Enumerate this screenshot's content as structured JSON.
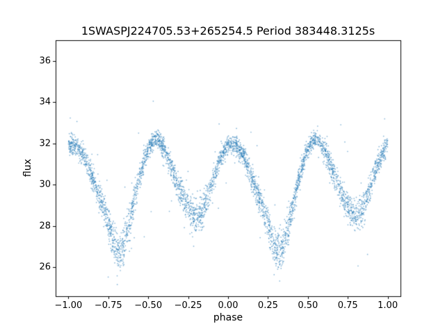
{
  "chart_data": {
    "type": "scatter",
    "title": "1SWASPJ224705.53+265254.5 Period 383448.3125s",
    "xlabel": "phase",
    "ylabel": "flux",
    "xlim": [
      -1.08,
      1.08
    ],
    "ylim": [
      24.6,
      37.0
    ],
    "x_ticks": [
      -1.0,
      -0.75,
      -0.5,
      -0.25,
      0.0,
      0.25,
      0.5,
      0.75,
      1.0
    ],
    "x_tick_labels": [
      "−1.00",
      "−0.75",
      "−0.50",
      "−0.25",
      "0.00",
      "0.25",
      "0.50",
      "0.75",
      "1.00"
    ],
    "y_ticks": [
      26,
      28,
      30,
      32,
      34,
      36
    ],
    "y_tick_labels": [
      "26",
      "28",
      "30",
      "32",
      "34",
      "36"
    ],
    "grid": false,
    "legend": null,
    "marker_color": "#1f77b4",
    "marker_alpha": 0.55,
    "marker_radius": 0.85,
    "n_points": 4000,
    "seed": 7,
    "noise_base": 0.22,
    "noise_slope": 0.05,
    "outlier_fraction": 0.02,
    "outlier_sigma": 1.5,
    "model_curve": {
      "phase_period": 1.0,
      "description": "folded light curve, two cycles plotted over phase -1..1; maxima ~32 at phase 0, deep minima ~26.7 at phase 0.31 and -0.69, secondary maxima ~32.3 at phase 0.56 and -0.44, secondary minima ~28.4 at phase 0.80 and -0.20",
      "anchors": [
        [
          0.0,
          32.0
        ],
        [
          0.05,
          31.9
        ],
        [
          0.1,
          31.4
        ],
        [
          0.15,
          30.3
        ],
        [
          0.2,
          29.3
        ],
        [
          0.25,
          28.2
        ],
        [
          0.29,
          27.0
        ],
        [
          0.32,
          26.7
        ],
        [
          0.35,
          27.2
        ],
        [
          0.4,
          28.8
        ],
        [
          0.44,
          30.2
        ],
        [
          0.48,
          31.3
        ],
        [
          0.52,
          32.0
        ],
        [
          0.56,
          32.3
        ],
        [
          0.6,
          31.7
        ],
        [
          0.64,
          30.9
        ],
        [
          0.68,
          30.1
        ],
        [
          0.72,
          29.4
        ],
        [
          0.76,
          28.8
        ],
        [
          0.8,
          28.4
        ],
        [
          0.84,
          28.7
        ],
        [
          0.88,
          29.6
        ],
        [
          0.92,
          30.6
        ],
        [
          0.96,
          31.4
        ],
        [
          1.0,
          32.0
        ]
      ]
    }
  }
}
